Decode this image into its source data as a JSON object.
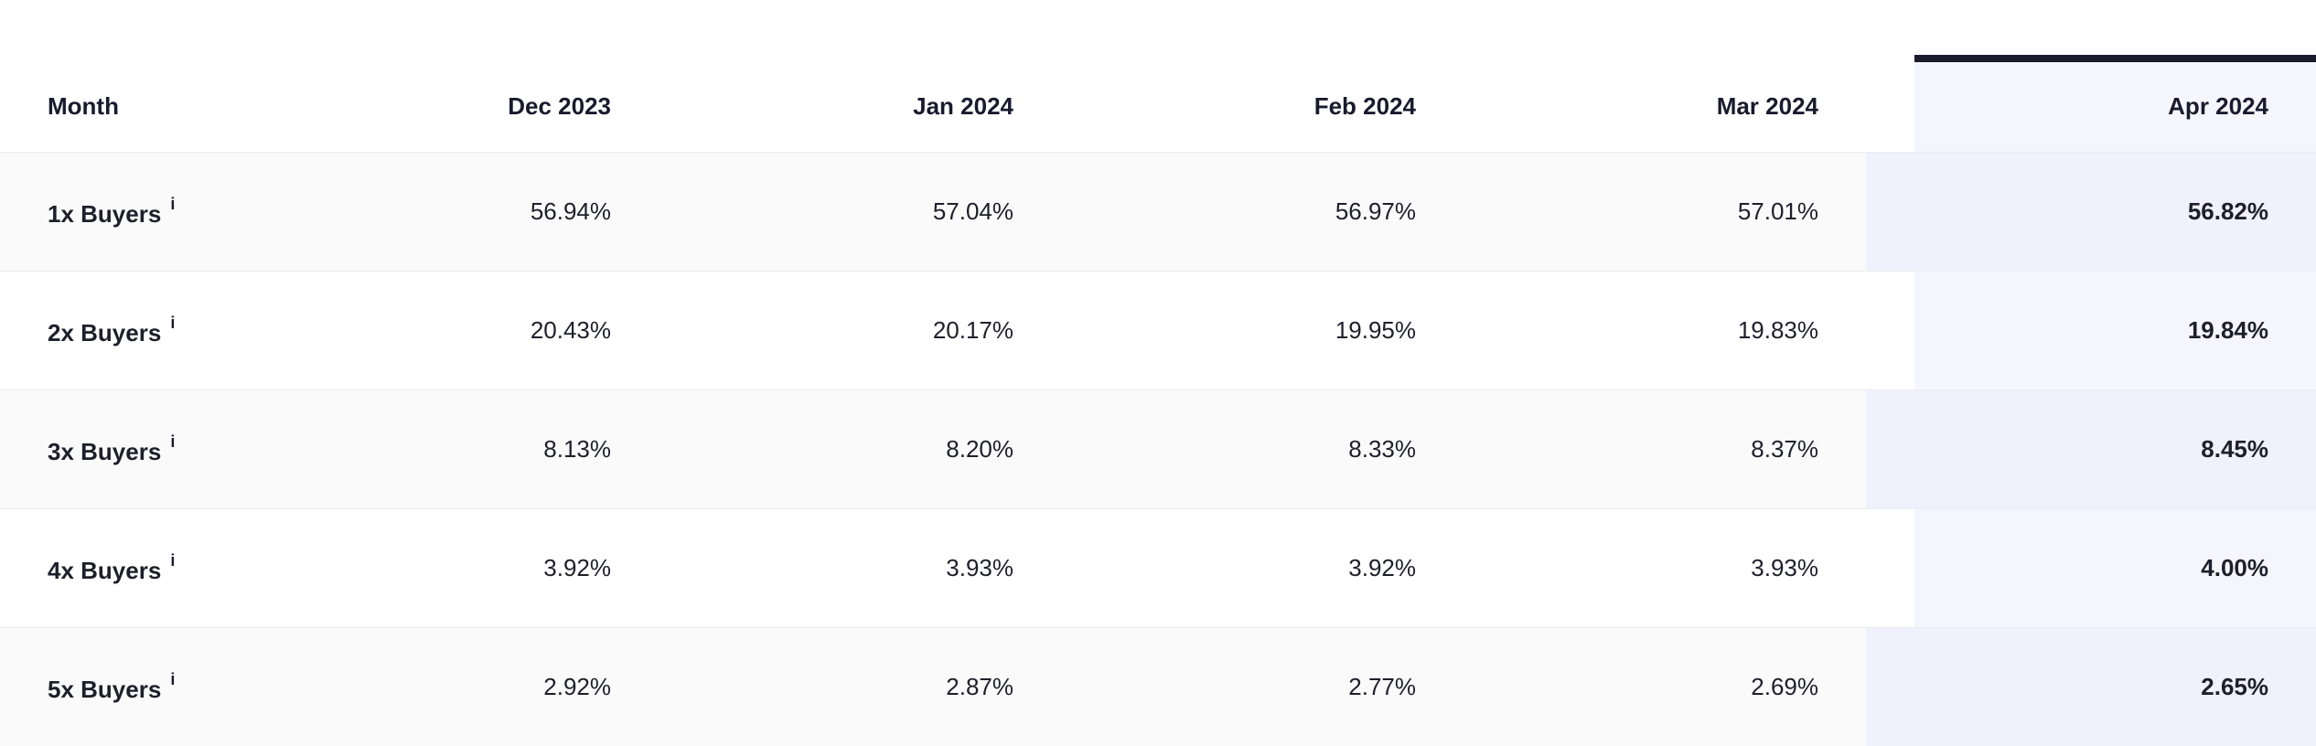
{
  "table": {
    "header_label": "Month",
    "months": [
      "Dec 2023",
      "Jan 2024",
      "Feb 2024",
      "Mar 2024",
      "Apr 2024"
    ],
    "highlighted_month": "Apr 2024",
    "info_glyph": "i",
    "rows": [
      {
        "label": "1x Buyers",
        "values": [
          "56.94%",
          "57.04%",
          "56.97%",
          "57.01%",
          "56.82%"
        ]
      },
      {
        "label": "2x Buyers",
        "values": [
          "20.43%",
          "20.17%",
          "19.95%",
          "19.83%",
          "19.84%"
        ]
      },
      {
        "label": "3x Buyers",
        "values": [
          "8.13%",
          "8.20%",
          "8.33%",
          "8.37%",
          "8.45%"
        ]
      },
      {
        "label": "4x Buyers",
        "values": [
          "3.92%",
          "3.93%",
          "3.92%",
          "3.93%",
          "4.00%"
        ]
      },
      {
        "label": "5x Buyers",
        "values": [
          "2.92%",
          "2.87%",
          "2.77%",
          "2.69%",
          "2.65%"
        ]
      }
    ]
  },
  "colors": {
    "highlight_background": "#f5f6fd",
    "highlight_top_bar": "#1c1b2e",
    "row_alt_background": "#fafafa",
    "text": "#1a1a2e"
  }
}
